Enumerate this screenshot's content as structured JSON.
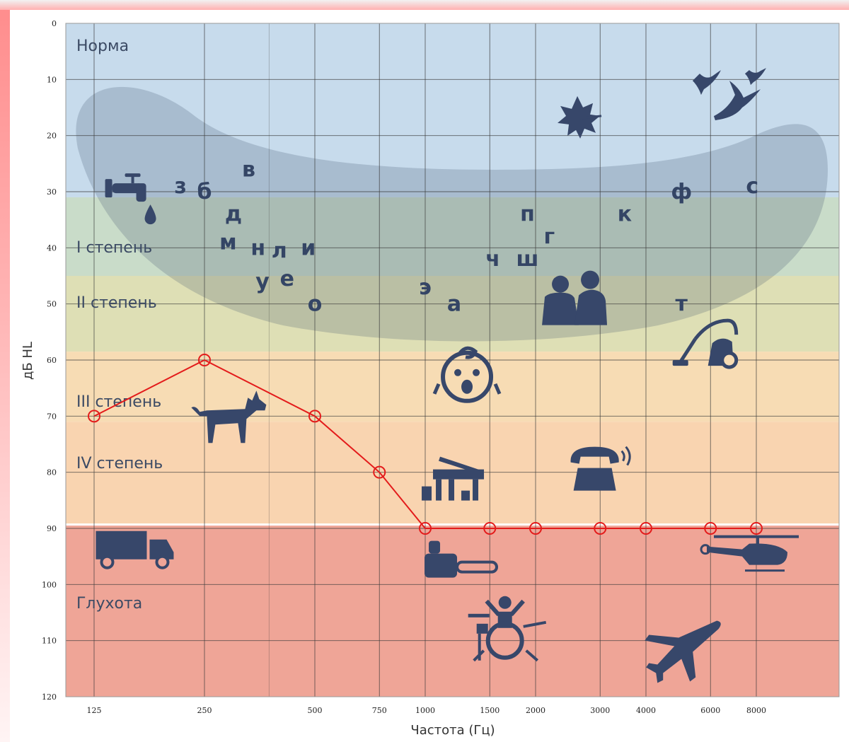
{
  "chart_data": {
    "type": "line",
    "xlabel": "Частота (Гц)",
    "ylabel": "дБ HL",
    "x_scale": "log",
    "y_inverted": true,
    "ylim": [
      0,
      120
    ],
    "y_ticks": [
      0,
      10,
      20,
      30,
      40,
      50,
      60,
      70,
      80,
      90,
      100,
      110,
      120
    ],
    "x_ticks": [
      125,
      250,
      500,
      750,
      1000,
      1500,
      2000,
      3000,
      4000,
      6000,
      8000
    ],
    "series": [
      {
        "color": "#e31b1b",
        "x": [
          125,
          250,
          500,
          750,
          1000,
          1500,
          2000,
          3000,
          4000,
          6000,
          8000
        ],
        "y": [
          70,
          60,
          70,
          80,
          90,
          90,
          90,
          90,
          90,
          90,
          90
        ]
      }
    ],
    "zones": [
      {
        "label": "Норма",
        "from": 0,
        "to": 31,
        "color": "#c7dbec"
      },
      {
        "label": "I степень",
        "from": 31,
        "to": 45,
        "color": "#c9dcc9"
      },
      {
        "label": "II степень",
        "from": 45,
        "to": 58.5,
        "color": "#dedfb5"
      },
      {
        "label": "III степень",
        "from": 58.5,
        "to": 71,
        "color": "#f7dcb4"
      },
      {
        "label": "IV степень",
        "from": 71,
        "to": 89.5,
        "color": "#f9d4b0"
      },
      {
        "label": "Глухота",
        "from": 89.5,
        "to": 120,
        "color": "#efa597"
      }
    ],
    "speech_letters": [
      {
        "t": "в",
        "x": 330,
        "y": 26
      },
      {
        "t": "з",
        "x": 215,
        "y": 29
      },
      {
        "t": "б",
        "x": 250,
        "y": 30
      },
      {
        "t": "д",
        "x": 300,
        "y": 34
      },
      {
        "t": "м",
        "x": 290,
        "y": 39
      },
      {
        "t": "н",
        "x": 350,
        "y": 40
      },
      {
        "t": "л",
        "x": 400,
        "y": 40.5
      },
      {
        "t": "и",
        "x": 480,
        "y": 40
      },
      {
        "t": "у",
        "x": 360,
        "y": 46
      },
      {
        "t": "е",
        "x": 420,
        "y": 45.5
      },
      {
        "t": "о",
        "x": 500,
        "y": 50
      },
      {
        "t": "э",
        "x": 1000,
        "y": 47
      },
      {
        "t": "а",
        "x": 1200,
        "y": 50
      },
      {
        "t": "п",
        "x": 1900,
        "y": 34
      },
      {
        "t": "г",
        "x": 2180,
        "y": 38
      },
      {
        "t": "ч",
        "x": 1530,
        "y": 42
      },
      {
        "t": "ш",
        "x": 1900,
        "y": 42
      },
      {
        "t": "к",
        "x": 3500,
        "y": 34
      },
      {
        "t": "ф",
        "x": 5000,
        "y": 30
      },
      {
        "t": "с",
        "x": 7800,
        "y": 29
      },
      {
        "t": "т",
        "x": 5000,
        "y": 50
      }
    ],
    "sound_icons": [
      {
        "icon": "faucet-icon",
        "x": 160,
        "y": 29
      },
      {
        "icon": "leaf-icon",
        "x": 2600,
        "y": 17
      },
      {
        "icon": "birds-icon",
        "x": 7000,
        "y": 14
      },
      {
        "icon": "conversation-icon",
        "x": 2600,
        "y": 50
      },
      {
        "icon": "vacuum-icon",
        "x": 5700,
        "y": 58
      },
      {
        "icon": "crying-baby-icon",
        "x": 1300,
        "y": 63
      },
      {
        "icon": "dog-icon",
        "x": 290,
        "y": 71
      },
      {
        "icon": "piano-icon",
        "x": 1200,
        "y": 81
      },
      {
        "icon": "telephone-icon",
        "x": 2900,
        "y": 80
      },
      {
        "icon": "truck-icon",
        "x": 165,
        "y": 94
      },
      {
        "icon": "chainsaw-icon",
        "x": 1200,
        "y": 96
      },
      {
        "icon": "helicopter-icon",
        "x": 8000,
        "y": 95
      },
      {
        "icon": "drummer-icon",
        "x": 1650,
        "y": 108
      },
      {
        "icon": "airplane-icon",
        "x": 5000,
        "y": 112
      }
    ]
  }
}
